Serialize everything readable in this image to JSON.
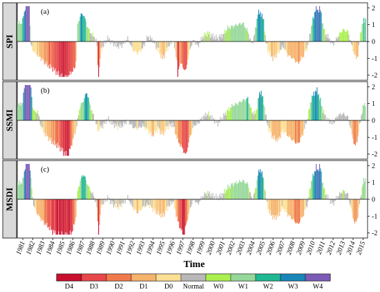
{
  "chart_data": {
    "type": "bar",
    "x_axis": {
      "label": "Time",
      "tick_labels": [
        "1981",
        "1982",
        "1983",
        "1984",
        "1985",
        "1986",
        "1987",
        "1988",
        "1989",
        "1990",
        "1991",
        "1992",
        "1993",
        "1994",
        "1995",
        "1996",
        "1997",
        "1998",
        "1999",
        "2000",
        "2001",
        "2002",
        "2003",
        "2004",
        "2005",
        "2006",
        "2007",
        "2008",
        "2009",
        "2010",
        "2011",
        "2012",
        "2013",
        "2014",
        "2015"
      ]
    },
    "y_ticks": [
      -2,
      -1,
      0,
      1,
      2
    ],
    "ylim": [
      -2.3,
      2.3
    ],
    "panels": [
      {
        "name": "SPI",
        "letter": "(a)",
        "anchors": [
          [
            1981.0,
            1.2
          ],
          [
            1981.3,
            1.0
          ],
          [
            1981.6,
            1.5
          ],
          [
            1981.8,
            2.1
          ],
          [
            1982.0,
            2.1
          ],
          [
            1982.2,
            2.1
          ],
          [
            1982.3,
            -0.2
          ],
          [
            1982.6,
            -0.6
          ],
          [
            1983.0,
            -0.8
          ],
          [
            1983.5,
            -1.1
          ],
          [
            1984.0,
            -1.4
          ],
          [
            1984.5,
            -1.6
          ],
          [
            1985.0,
            -1.9
          ],
          [
            1985.5,
            -2.1
          ],
          [
            1986.0,
            -2.1
          ],
          [
            1986.4,
            -1.8
          ],
          [
            1986.8,
            -1.5
          ],
          [
            1987.0,
            1.0
          ],
          [
            1987.3,
            1.6
          ],
          [
            1987.6,
            1.6
          ],
          [
            1987.9,
            1.0
          ],
          [
            1988.2,
            0.6
          ],
          [
            1988.6,
            0.3
          ],
          [
            1988.9,
            0.0
          ],
          [
            1989.0,
            -1.5
          ],
          [
            1989.1,
            -2.1
          ],
          [
            1989.3,
            -0.6
          ],
          [
            1989.6,
            -0.2
          ],
          [
            1990.0,
            0.2
          ],
          [
            1990.5,
            -0.1
          ],
          [
            1991.0,
            -0.3
          ],
          [
            1991.5,
            -0.2
          ],
          [
            1992.0,
            0.2
          ],
          [
            1992.5,
            -0.5
          ],
          [
            1993.0,
            -0.7
          ],
          [
            1993.5,
            -0.4
          ],
          [
            1994.0,
            0.3
          ],
          [
            1994.5,
            0.1
          ],
          [
            1995.0,
            -0.5
          ],
          [
            1995.5,
            -1.0
          ],
          [
            1996.0,
            -0.4
          ],
          [
            1996.5,
            0.1
          ],
          [
            1996.9,
            -1.0
          ],
          [
            1997.0,
            -2.1
          ],
          [
            1997.2,
            -1.2
          ],
          [
            1997.5,
            -1.5
          ],
          [
            1997.8,
            -1.8
          ],
          [
            1998.0,
            -1.0
          ],
          [
            1998.3,
            -0.3
          ],
          [
            1998.6,
            0.1
          ],
          [
            1999.0,
            -0.3
          ],
          [
            1999.5,
            0.3
          ],
          [
            2000.0,
            0.5
          ],
          [
            2000.5,
            0.3
          ],
          [
            2001.0,
            0.2
          ],
          [
            2001.5,
            0.4
          ],
          [
            2002.0,
            0.8
          ],
          [
            2002.5,
            0.9
          ],
          [
            2003.0,
            1.0
          ],
          [
            2003.5,
            1.1
          ],
          [
            2004.0,
            0.6
          ],
          [
            2004.4,
            -0.2
          ],
          [
            2004.8,
            0.8
          ],
          [
            2005.0,
            1.7
          ],
          [
            2005.3,
            1.7
          ],
          [
            2005.6,
            1.2
          ],
          [
            2005.8,
            0.0
          ],
          [
            2006.0,
            -0.5
          ],
          [
            2006.5,
            -1.0
          ],
          [
            2007.0,
            -0.7
          ],
          [
            2007.5,
            -0.3
          ],
          [
            2008.0,
            -0.8
          ],
          [
            2008.5,
            -1.0
          ],
          [
            2009.0,
            -1.3
          ],
          [
            2009.5,
            -0.9
          ],
          [
            2010.0,
            -0.3
          ],
          [
            2010.3,
            0.8
          ],
          [
            2010.6,
            1.5
          ],
          [
            2010.8,
            2.1
          ],
          [
            2011.0,
            1.8
          ],
          [
            2011.2,
            2.1
          ],
          [
            2011.4,
            1.3
          ],
          [
            2011.7,
            0.5
          ],
          [
            2012.0,
            0.3
          ],
          [
            2012.5,
            -0.2
          ],
          [
            2013.0,
            0.3
          ],
          [
            2013.5,
            0.7
          ],
          [
            2014.0,
            0.6
          ],
          [
            2014.4,
            -0.3
          ],
          [
            2014.8,
            -1.0
          ],
          [
            2015.0,
            -0.8
          ],
          [
            2015.3,
            0.7
          ],
          [
            2015.6,
            1.3
          ]
        ]
      },
      {
        "name": "SSMI",
        "letter": "(b)",
        "anchors": [
          [
            1981.0,
            1.0
          ],
          [
            1981.2,
            0.9
          ],
          [
            1981.5,
            1.1
          ],
          [
            1981.7,
            2.1
          ],
          [
            1982.0,
            2.1
          ],
          [
            1982.3,
            2.1
          ],
          [
            1982.5,
            0.8
          ],
          [
            1982.8,
            0.4
          ],
          [
            1983.0,
            0.6
          ],
          [
            1983.3,
            -0.3
          ],
          [
            1983.6,
            -0.7
          ],
          [
            1984.0,
            -1.0
          ],
          [
            1984.5,
            -1.3
          ],
          [
            1985.0,
            -1.5
          ],
          [
            1985.5,
            -1.8
          ],
          [
            1986.0,
            -2.1
          ],
          [
            1986.3,
            -1.6
          ],
          [
            1986.6,
            -1.0
          ],
          [
            1986.9,
            -0.4
          ],
          [
            1987.2,
            0.8
          ],
          [
            1987.6,
            1.2
          ],
          [
            1987.9,
            1.7
          ],
          [
            1988.2,
            1.0
          ],
          [
            1988.5,
            0.4
          ],
          [
            1988.8,
            -0.1
          ],
          [
            1989.0,
            -0.6
          ],
          [
            1989.5,
            -0.3
          ],
          [
            1990.0,
            0.1
          ],
          [
            1990.5,
            -0.2
          ],
          [
            1991.0,
            -0.4
          ],
          [
            1991.5,
            -0.3
          ],
          [
            1992.0,
            0.0
          ],
          [
            1992.5,
            -0.4
          ],
          [
            1993.0,
            -0.5
          ],
          [
            1993.5,
            -0.3
          ],
          [
            1994.0,
            -0.6
          ],
          [
            1994.5,
            -0.9
          ],
          [
            1995.0,
            -0.5
          ],
          [
            1995.5,
            -0.8
          ],
          [
            1996.0,
            -0.4
          ],
          [
            1996.5,
            -0.2
          ],
          [
            1997.0,
            -1.2
          ],
          [
            1997.5,
            -1.7
          ],
          [
            1997.8,
            -2.1
          ],
          [
            1998.2,
            -1.0
          ],
          [
            1998.6,
            -0.3
          ],
          [
            1999.0,
            -0.2
          ],
          [
            1999.5,
            0.2
          ],
          [
            2000.0,
            0.4
          ],
          [
            2000.5,
            0.1
          ],
          [
            2001.0,
            -0.2
          ],
          [
            2001.5,
            0.2
          ],
          [
            2002.0,
            0.6
          ],
          [
            2002.5,
            0.9
          ],
          [
            2003.0,
            1.0
          ],
          [
            2003.5,
            1.2
          ],
          [
            2004.0,
            1.3
          ],
          [
            2004.4,
            0.5
          ],
          [
            2004.8,
            0.4
          ],
          [
            2005.0,
            1.2
          ],
          [
            2005.3,
            1.8
          ],
          [
            2005.6,
            1.0
          ],
          [
            2006.0,
            -0.4
          ],
          [
            2006.5,
            -1.0
          ],
          [
            2007.0,
            -1.2
          ],
          [
            2007.5,
            -0.6
          ],
          [
            2008.0,
            -0.9
          ],
          [
            2008.5,
            -1.2
          ],
          [
            2009.0,
            -1.4
          ],
          [
            2009.5,
            -0.8
          ],
          [
            2010.0,
            0.2
          ],
          [
            2010.3,
            1.2
          ],
          [
            2010.6,
            1.6
          ],
          [
            2010.9,
            1.8
          ],
          [
            2011.1,
            1.5
          ],
          [
            2011.4,
            0.8
          ],
          [
            2011.7,
            0.3
          ],
          [
            2012.0,
            0.0
          ],
          [
            2012.5,
            -0.2
          ],
          [
            2013.0,
            0.3
          ],
          [
            2013.5,
            0.4
          ],
          [
            2014.0,
            0.2
          ],
          [
            2014.4,
            -0.8
          ],
          [
            2014.7,
            -1.6
          ],
          [
            2015.0,
            -1.0
          ],
          [
            2015.3,
            0.2
          ],
          [
            2015.6,
            1.0
          ]
        ]
      },
      {
        "name": "MSDI",
        "letter": "(c)",
        "anchors": [
          [
            1981.0,
            1.0
          ],
          [
            1981.3,
            0.9
          ],
          [
            1981.6,
            1.3
          ],
          [
            1981.8,
            2.1
          ],
          [
            1982.0,
            2.1
          ],
          [
            1982.2,
            2.1
          ],
          [
            1982.4,
            0.7
          ],
          [
            1982.6,
            -0.4
          ],
          [
            1983.0,
            -0.9
          ],
          [
            1983.5,
            -1.3
          ],
          [
            1984.0,
            -1.6
          ],
          [
            1984.5,
            -1.9
          ],
          [
            1985.0,
            -2.1
          ],
          [
            1985.5,
            -2.1
          ],
          [
            1986.0,
            -2.1
          ],
          [
            1986.4,
            -2.0
          ],
          [
            1986.8,
            -1.2
          ],
          [
            1987.0,
            0.5
          ],
          [
            1987.3,
            1.2
          ],
          [
            1987.6,
            1.5
          ],
          [
            1987.9,
            1.0
          ],
          [
            1988.2,
            0.6
          ],
          [
            1988.6,
            0.2
          ],
          [
            1988.9,
            -0.3
          ],
          [
            1989.0,
            -1.4
          ],
          [
            1989.1,
            -2.1
          ],
          [
            1989.3,
            -0.5
          ],
          [
            1989.6,
            -0.2
          ],
          [
            1990.0,
            0.1
          ],
          [
            1990.5,
            -0.3
          ],
          [
            1991.0,
            -0.5
          ],
          [
            1991.5,
            -0.3
          ],
          [
            1992.0,
            0.1
          ],
          [
            1992.5,
            -0.5
          ],
          [
            1993.0,
            -0.8
          ],
          [
            1993.5,
            -0.5
          ],
          [
            1994.0,
            -0.3
          ],
          [
            1994.5,
            -0.6
          ],
          [
            1995.0,
            -0.8
          ],
          [
            1995.5,
            -1.0
          ],
          [
            1996.0,
            -0.5
          ],
          [
            1996.5,
            -0.1
          ],
          [
            1997.0,
            -1.3
          ],
          [
            1997.3,
            -1.8
          ],
          [
            1997.6,
            -2.1
          ],
          [
            1998.0,
            -1.1
          ],
          [
            1998.3,
            -0.4
          ],
          [
            1998.6,
            0.0
          ],
          [
            1999.0,
            -0.3
          ],
          [
            1999.5,
            0.2
          ],
          [
            2000.0,
            0.4
          ],
          [
            2000.5,
            0.2
          ],
          [
            2001.0,
            0.1
          ],
          [
            2001.5,
            0.3
          ],
          [
            2002.0,
            0.7
          ],
          [
            2002.5,
            0.9
          ],
          [
            2003.0,
            1.0
          ],
          [
            2003.5,
            1.1
          ],
          [
            2004.0,
            0.9
          ],
          [
            2004.4,
            0.0
          ],
          [
            2004.8,
            0.6
          ],
          [
            2005.0,
            1.5
          ],
          [
            2005.3,
            1.8
          ],
          [
            2005.6,
            1.1
          ],
          [
            2005.9,
            -0.3
          ],
          [
            2006.2,
            -0.8
          ],
          [
            2006.6,
            -1.1
          ],
          [
            2007.0,
            -1.0
          ],
          [
            2007.5,
            -0.5
          ],
          [
            2008.0,
            -0.9
          ],
          [
            2008.5,
            -1.2
          ],
          [
            2009.0,
            -1.5
          ],
          [
            2009.5,
            -1.0
          ],
          [
            2010.0,
            -0.2
          ],
          [
            2010.3,
            1.0
          ],
          [
            2010.6,
            1.5
          ],
          [
            2010.8,
            1.9
          ],
          [
            2011.0,
            1.7
          ],
          [
            2011.2,
            2.1
          ],
          [
            2011.4,
            1.2
          ],
          [
            2011.7,
            0.4
          ],
          [
            2012.0,
            0.1
          ],
          [
            2012.5,
            -0.3
          ],
          [
            2013.0,
            0.2
          ],
          [
            2013.5,
            0.5
          ],
          [
            2014.0,
            0.3
          ],
          [
            2014.4,
            -0.8
          ],
          [
            2014.7,
            -1.5
          ],
          [
            2015.0,
            -1.0
          ],
          [
            2015.3,
            0.3
          ],
          [
            2015.6,
            1.2
          ]
        ]
      }
    ],
    "legend": {
      "classes": [
        {
          "label": "D4",
          "color": "#c8102e"
        },
        {
          "label": "D3",
          "color": "#e8484a"
        },
        {
          "label": "D2",
          "color": "#f07a4c"
        },
        {
          "label": "D1",
          "color": "#f6b36c"
        },
        {
          "label": "D0",
          "color": "#fbdf94"
        },
        {
          "label": "Normal",
          "color": "#b8b8b8"
        },
        {
          "label": "W0",
          "color": "#aaf04e"
        },
        {
          "label": "W1",
          "color": "#96d89a"
        },
        {
          "label": "W2",
          "color": "#1fb892"
        },
        {
          "label": "W3",
          "color": "#1a86b8"
        },
        {
          "label": "W4",
          "color": "#7b5bb6"
        }
      ]
    }
  }
}
